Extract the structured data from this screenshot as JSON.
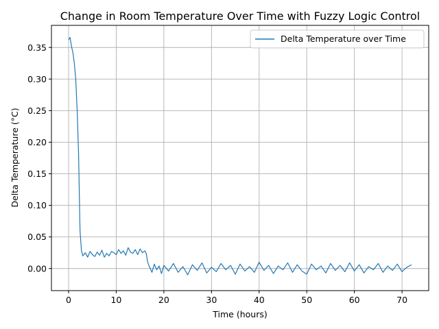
{
  "chart_data": {
    "type": "line",
    "title": "Change in Room Temperature Over Time with Fuzzy Logic Control",
    "xlabel": "Time (hours)",
    "ylabel": "Delta Temperature (°C)",
    "xlim": [
      -3.6,
      75.6
    ],
    "ylim": [
      -0.035,
      0.385
    ],
    "x_ticks": [
      0,
      10,
      20,
      30,
      40,
      50,
      60,
      70
    ],
    "x_tick_labels": [
      "0",
      "10",
      "20",
      "30",
      "40",
      "50",
      "60",
      "70"
    ],
    "y_ticks": [
      0.0,
      0.05,
      0.1,
      0.15,
      0.2,
      0.25,
      0.3,
      0.35
    ],
    "y_tick_labels": [
      "0.00",
      "0.05",
      "0.10",
      "0.15",
      "0.20",
      "0.25",
      "0.30",
      "0.35"
    ],
    "grid": true,
    "legend_position": "upper-right",
    "series": [
      {
        "name": "Delta Temperature over Time",
        "color": "#1f77b4",
        "x": [
          0.0,
          0.3,
          0.6,
          0.9,
          1.2,
          1.5,
          1.8,
          2.1,
          2.4,
          2.7,
          3.0,
          3.5,
          4.0,
          4.5,
          5.0,
          5.5,
          6.0,
          6.5,
          7.0,
          7.5,
          8.0,
          8.5,
          9.0,
          9.5,
          10.0,
          10.5,
          11.0,
          11.5,
          12.0,
          12.5,
          13.0,
          13.5,
          14.0,
          14.5,
          15.0,
          15.5,
          16.0,
          16.3,
          16.6,
          17.0,
          17.5,
          18.0,
          18.5,
          19.0,
          19.5,
          20.0,
          21.0,
          22.0,
          23.0,
          24.0,
          25.0,
          26.0,
          27.0,
          28.0,
          29.0,
          30.0,
          31.0,
          32.0,
          33.0,
          34.0,
          35.0,
          36.0,
          37.0,
          38.0,
          39.0,
          40.0,
          41.0,
          42.0,
          43.0,
          44.0,
          45.0,
          46.0,
          47.0,
          48.0,
          49.0,
          50.0,
          51.0,
          52.0,
          53.0,
          54.0,
          55.0,
          56.0,
          57.0,
          58.0,
          59.0,
          60.0,
          61.0,
          62.0,
          63.0,
          64.0,
          65.0,
          66.0,
          67.0,
          68.0,
          69.0,
          70.0,
          71.0,
          72.0
        ],
        "y": [
          0.362,
          0.366,
          0.352,
          0.342,
          0.325,
          0.3,
          0.25,
          0.18,
          0.06,
          0.028,
          0.02,
          0.025,
          0.018,
          0.027,
          0.022,
          0.019,
          0.026,
          0.021,
          0.029,
          0.018,
          0.024,
          0.02,
          0.027,
          0.025,
          0.022,
          0.03,
          0.024,
          0.028,
          0.021,
          0.033,
          0.026,
          0.024,
          0.03,
          0.022,
          0.031,
          0.025,
          0.028,
          0.024,
          0.01,
          0.002,
          -0.006,
          0.007,
          -0.002,
          0.004,
          -0.008,
          0.005,
          -0.004,
          0.008,
          -0.006,
          0.003,
          -0.01,
          0.006,
          -0.003,
          0.009,
          -0.007,
          0.002,
          -0.005,
          0.008,
          -0.002,
          0.005,
          -0.009,
          0.007,
          -0.004,
          0.003,
          -0.006,
          0.01,
          -0.003,
          0.005,
          -0.008,
          0.004,
          -0.002,
          0.009,
          -0.006,
          0.006,
          -0.004,
          -0.009,
          0.007,
          -0.002,
          0.004,
          -0.007,
          0.008,
          -0.003,
          0.005,
          -0.005,
          0.009,
          -0.004,
          0.006,
          -0.007,
          0.003,
          -0.002,
          0.008,
          -0.006,
          0.004,
          -0.003,
          0.007,
          -0.005,
          0.002,
          0.006
        ]
      }
    ]
  }
}
